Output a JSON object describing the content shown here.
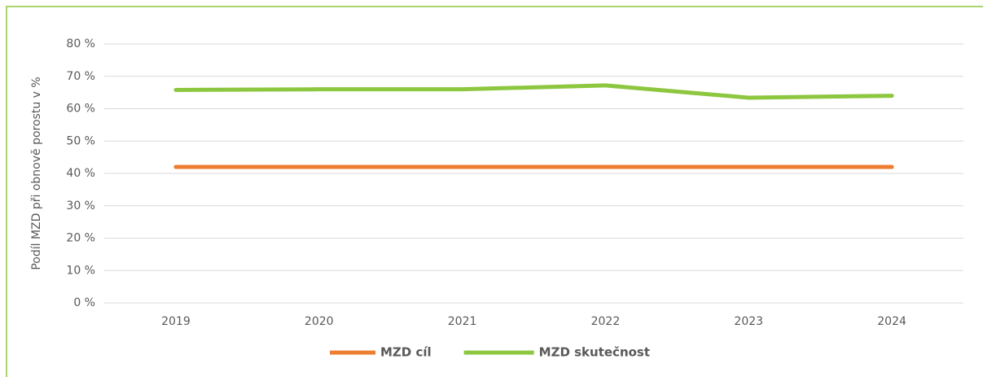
{
  "chart_data": {
    "type": "line",
    "y_label": "Podíl MZD při obnově porostu v %",
    "categories": [
      "2019",
      "2020",
      "2021",
      "2022",
      "2023",
      "2024"
    ],
    "series": [
      {
        "name": "MZD cíl",
        "color": "#ed7d31",
        "values": [
          42,
          42,
          42,
          42,
          42,
          42
        ]
      },
      {
        "name": "MZD skutečnost",
        "color": "#8dc63f",
        "values": [
          65.8,
          66,
          66,
          67.2,
          63.4,
          64
        ]
      }
    ],
    "ylim": [
      0,
      80
    ],
    "yticks": [
      {
        "value": 0,
        "label": "0 %"
      },
      {
        "value": 10,
        "label": "10 %"
      },
      {
        "value": 20,
        "label": "20 %"
      },
      {
        "value": 30,
        "label": "30 %"
      },
      {
        "value": 40,
        "label": "40 %"
      },
      {
        "value": 50,
        "label": "50 %"
      },
      {
        "value": 60,
        "label": "60 %"
      },
      {
        "value": 70,
        "label": "70 %"
      },
      {
        "value": 80,
        "label": "80 %"
      }
    ],
    "grid": true,
    "legend": "bottom"
  }
}
